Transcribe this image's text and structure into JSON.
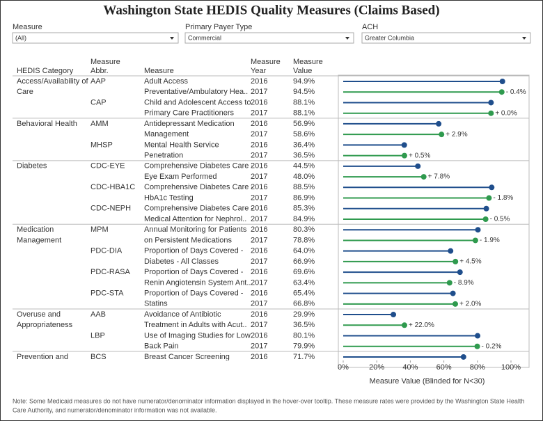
{
  "title": "Washington State HEDIS Quality Measures (Claims Based)",
  "filters": [
    {
      "label": "Measure",
      "value": "(All)"
    },
    {
      "label": "Primary Payer Type",
      "value": "Commercial"
    },
    {
      "label": "ACH",
      "value": "Greater Columbia"
    }
  ],
  "columns": [
    [
      "HEDIS Category"
    ],
    [
      "Measure",
      "Abbr."
    ],
    [
      "Measure"
    ],
    [
      "Measure",
      "Year"
    ],
    [
      "Measure",
      "Value"
    ]
  ],
  "rows": [
    {
      "category": "Access/Availability of",
      "abbr": "AAP",
      "measure": "Adult Access",
      "year": "2016"
    },
    {
      "category": "Care",
      "abbr": null,
      "measure": "Preventative/Ambulatory Hea..",
      "year": "2017"
    },
    {
      "category": null,
      "abbr": "CAP",
      "measure": "Child and Adolescent Access to",
      "year": "2016"
    },
    {
      "category": null,
      "abbr": null,
      "measure": "Primary Care Practitioners",
      "year": "2017"
    },
    {
      "category": "Behavioral Health",
      "abbr": "AMM",
      "measure": "Antidepressant Medication",
      "year": "2016"
    },
    {
      "category": null,
      "abbr": null,
      "measure": "Management",
      "year": "2017"
    },
    {
      "category": null,
      "abbr": "MHSP",
      "measure": "Mental Health Service",
      "year": "2016"
    },
    {
      "category": null,
      "abbr": null,
      "measure": "Penetration",
      "year": "2017"
    },
    {
      "category": "Diabetes",
      "abbr": "CDC-EYE",
      "measure": "Comprehensive Diabetes Care -",
      "year": "2016"
    },
    {
      "category": null,
      "abbr": null,
      "measure": "Eye Exam Performed",
      "year": "2017"
    },
    {
      "category": null,
      "abbr": "CDC-HBA1C",
      "measure": "Comprehensive Diabetes Care -",
      "year": "2016"
    },
    {
      "category": null,
      "abbr": null,
      "measure": "HbA1c Testing",
      "year": "2017"
    },
    {
      "category": null,
      "abbr": "CDC-NEPH",
      "measure": "Comprehensive Diabetes Care -",
      "year": "2016"
    },
    {
      "category": null,
      "abbr": null,
      "measure": "Medical Attention for Nephrol..",
      "year": "2017"
    },
    {
      "category": "Medication",
      "abbr": "MPM",
      "measure": "Annual Monitoring for Patients",
      "year": "2016"
    },
    {
      "category": "Management",
      "abbr": null,
      "measure": "on Persistent Medications",
      "year": "2017"
    },
    {
      "category": null,
      "abbr": "PDC-DIA",
      "measure": "Proportion of Days Covered -",
      "year": "2016"
    },
    {
      "category": null,
      "abbr": null,
      "measure": "Diabetes - All Classes",
      "year": "2017"
    },
    {
      "category": null,
      "abbr": "PDC-RASA",
      "measure": "Proportion of Days Covered -",
      "year": "2016"
    },
    {
      "category": null,
      "abbr": null,
      "measure": "Renin Angiotensin System Ant..",
      "year": "2017"
    },
    {
      "category": null,
      "abbr": "PDC-STA",
      "measure": "Proportion of Days Covered -",
      "year": "2016"
    },
    {
      "category": null,
      "abbr": null,
      "measure": "Statins",
      "year": "2017"
    },
    {
      "category": "Overuse and",
      "abbr": "AAB",
      "measure": "Avoidance of Antibiotic",
      "year": "2016"
    },
    {
      "category": "Appropriateness",
      "abbr": null,
      "measure": "Treatment in Adults with Acut..",
      "year": "2017"
    },
    {
      "category": null,
      "abbr": "LBP",
      "measure": "Use of Imaging Studies for Low",
      "year": "2016"
    },
    {
      "category": null,
      "abbr": null,
      "measure": "Back Pain",
      "year": "2017"
    },
    {
      "category": "Prevention and",
      "abbr": "BCS",
      "measure": "Breast Cancer Screening",
      "year": "2016"
    }
  ],
  "chart_data": {
    "type": "lollipop",
    "xlabel": "Measure Value (Blinded for N<30)",
    "xlim": [
      0,
      100
    ],
    "xticks": [
      {
        "value": 0,
        "label": "0%"
      },
      {
        "value": 20,
        "label": "20%"
      },
      {
        "value": 40,
        "label": "40%"
      },
      {
        "value": 60,
        "label": "60%"
      },
      {
        "value": 80,
        "label": "80%"
      },
      {
        "value": 100,
        "label": "100%"
      }
    ],
    "colors": {
      "2016": "#1f4e8c",
      "2017": "#2f9a4e"
    },
    "values": [
      94.9,
      94.5,
      88.1,
      88.1,
      56.9,
      58.6,
      36.4,
      36.5,
      44.5,
      48.0,
      88.5,
      86.9,
      85.3,
      84.9,
      80.3,
      78.8,
      64.0,
      66.9,
      69.6,
      63.4,
      65.4,
      66.8,
      29.9,
      36.5,
      80.1,
      79.9,
      71.7
    ],
    "value_labels": [
      "94.9%",
      "94.5%",
      "88.1%",
      "88.1%",
      "56.9%",
      "58.6%",
      "36.4%",
      "36.5%",
      "44.5%",
      "48.0%",
      "88.5%",
      "86.9%",
      "85.3%",
      "84.9%",
      "80.3%",
      "78.8%",
      "64.0%",
      "66.9%",
      "69.6%",
      "63.4%",
      "65.4%",
      "66.8%",
      "29.9%",
      "36.5%",
      "80.1%",
      "79.9%",
      "71.7%"
    ],
    "change_labels": [
      null,
      "- 0.4%",
      null,
      "+ 0.0%",
      null,
      "+ 2.9%",
      null,
      "+ 0.5%",
      null,
      "+ 7.8%",
      null,
      "- 1.8%",
      null,
      "- 0.5%",
      null,
      "- 1.9%",
      null,
      "+ 4.5%",
      null,
      "- 8.9%",
      null,
      "+ 2.0%",
      null,
      "+ 22.0%",
      null,
      "- 0.2%",
      null
    ]
  },
  "note": [
    "Note: Some Medicaid measures do not have numerator/denominator information displayed in the hover-over tooltip. These measure rates were provided by the Washington State Health",
    "Care Authority, and numerator/denominator information was not available."
  ]
}
